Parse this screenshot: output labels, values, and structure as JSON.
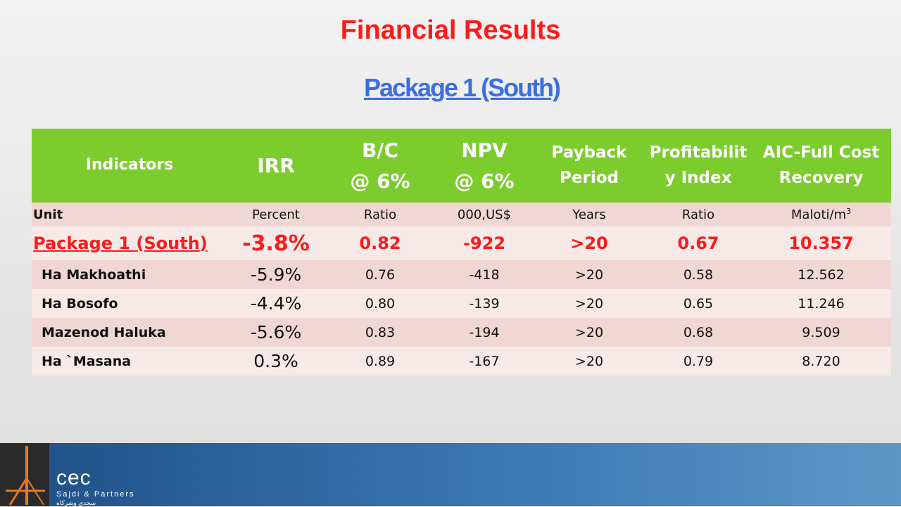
{
  "page": {
    "title": "Financial Results",
    "subtitle": "Package 1 (South)"
  },
  "table": {
    "headers": {
      "indicators": "Indicators",
      "irr": "IRR",
      "bc_line1": "B/C",
      "bc_line2": "@ 6%",
      "npv_line1": "NPV",
      "npv_line2": "@ 6%",
      "payback_line1": "Payback",
      "payback_line2": "Period",
      "profit_line1": "Profitabilit",
      "profit_line2": "y Index",
      "aic_line1": "AIC-Full Cost",
      "aic_line2": "Recovery"
    },
    "unit_row": {
      "label": "Unit",
      "irr": "Percent",
      "bc": "Ratio",
      "npv": "000,US$",
      "payback": "Years",
      "profit": "Ratio",
      "aic": "Maloti/m",
      "aic_sup": "3"
    },
    "package_row": {
      "name": "Package 1 (South)",
      "irr": "-3.8%",
      "bc": "0.82",
      "npv": "-922",
      "payback": ">20",
      "profit": "0.67",
      "aic": "10.357"
    },
    "rows": [
      {
        "name": "Ha Makhoathi",
        "irr": "-5.9%",
        "bc": "0.76",
        "npv": "-418",
        "payback": ">20",
        "profit": "0.58",
        "aic": "12.562"
      },
      {
        "name": "Ha Bosofo",
        "irr": "-4.4%",
        "bc": "0.80",
        "npv": "-139",
        "payback": ">20",
        "profit": "0.65",
        "aic": "11.246"
      },
      {
        "name": "Mazenod Haluka",
        "irr": "-5.6%",
        "bc": "0.83",
        "npv": "-194",
        "payback": ">20",
        "profit": "0.68",
        "aic": "9.509"
      },
      {
        "name": "Ha `Masana",
        "irr": "0.3%",
        "bc": "0.89",
        "npv": "-167",
        "payback": ">20",
        "profit": "0.79",
        "aic": "8.720"
      }
    ]
  },
  "footer": {
    "brand": "cec",
    "partners": "Sajdi & Partners",
    "arabic": "سجدي وشركاه"
  },
  "colors": {
    "title_red": "#ff1a1a",
    "subtitle_blue": "#3b6fe0",
    "header_green": "#7dcc2e",
    "row_pink_dark": "#f1d7d3",
    "row_pink_light": "#f6e9e7",
    "footer_blue": "#2f67a3",
    "logo_orange": "#e07b22"
  }
}
